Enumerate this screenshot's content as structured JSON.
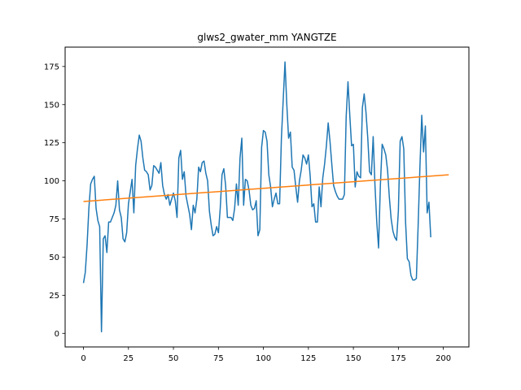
{
  "chart_data": {
    "type": "line",
    "title": "glws2_gwater_mm YANGTZE",
    "xlabel": "",
    "ylabel": "",
    "xlim": [
      -10.2,
      214.2
    ],
    "ylim": [
      -8.9,
      187.7
    ],
    "x_ticks": [
      0,
      25,
      50,
      75,
      100,
      125,
      150,
      175,
      200
    ],
    "y_ticks": [
      0,
      25,
      50,
      75,
      100,
      125,
      150,
      175
    ],
    "grid": false,
    "legend": "none",
    "series": [
      {
        "color": "#1f77b4",
        "x_start": 0,
        "x_step": 1,
        "values": [
          33,
          40,
          58,
          82,
          98,
          101,
          103,
          82,
          74,
          70,
          1,
          62,
          64,
          53,
          73,
          73,
          76,
          79,
          84,
          100,
          81,
          76,
          62,
          60,
          66,
          85,
          93,
          101,
          79,
          110,
          121,
          130,
          126,
          115,
          107,
          106,
          104,
          94,
          97,
          110,
          109,
          107,
          105,
          112,
          97,
          91,
          88,
          91,
          84,
          88,
          92,
          87,
          76,
          115,
          120,
          101,
          106,
          90,
          84,
          78,
          68,
          84,
          79,
          88,
          109,
          106,
          112,
          113,
          105,
          100,
          80,
          71,
          64,
          65,
          70,
          66,
          82,
          104,
          108,
          97,
          76,
          76,
          76,
          74,
          82,
          98,
          84,
          115,
          128,
          84,
          101,
          100,
          94,
          84,
          81,
          82,
          87,
          64,
          68,
          122,
          133,
          132,
          126,
          104,
          96,
          83,
          88,
          92,
          85,
          85,
          128,
          153,
          178,
          150,
          128,
          132,
          109,
          107,
          96,
          86,
          100,
          107,
          117,
          115,
          111,
          117,
          103,
          83,
          85,
          73,
          73,
          96,
          83,
          102,
          111,
          123,
          138,
          126,
          111,
          97,
          93,
          90,
          88,
          88,
          88,
          91,
          142,
          165,
          143,
          123,
          124,
          96,
          106,
          103,
          102,
          148,
          157,
          145,
          128,
          106,
          104,
          129,
          97,
          73,
          56,
          97,
          124,
          121,
          117,
          107,
          89,
          75,
          67,
          63,
          61,
          80,
          126,
          129,
          121,
          73,
          49,
          47,
          38,
          35,
          35,
          36,
          71,
          110,
          143,
          119,
          136,
          79,
          86,
          63
        ]
      },
      {
        "color": "#ff7f0e",
        "x": [
          0,
          203
        ],
        "values": [
          86.5,
          104
        ]
      }
    ]
  }
}
